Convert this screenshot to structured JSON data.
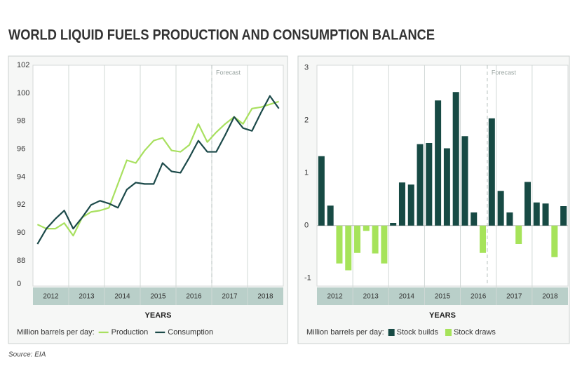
{
  "title": "WORLD LIQUID FUELS PRODUCTION AND CONSUMPTION BALANCE",
  "source": "Source: EIA",
  "chart_data": [
    {
      "type": "line",
      "categories": [
        "2012",
        "2013",
        "2014",
        "2015",
        "2016",
        "2017",
        "2018"
      ],
      "x": [
        2012.125,
        2012.375,
        2012.625,
        2012.875,
        2013.125,
        2013.375,
        2013.625,
        2013.875,
        2014.125,
        2014.375,
        2014.625,
        2014.875,
        2015.125,
        2015.375,
        2015.625,
        2015.875,
        2016.125,
        2016.375,
        2016.625,
        2016.875,
        2017.125,
        2017.375,
        2017.625,
        2017.875,
        2018.125,
        2018.375,
        2018.625,
        2018.875
      ],
      "xlim": [
        2012,
        2019
      ],
      "xgrid": [
        2013,
        2014,
        2015,
        2016,
        2017,
        2018
      ],
      "ylim": [
        0,
        102
      ],
      "y_break": [
        0,
        88
      ],
      "yticks": [
        0,
        88,
        90,
        92,
        94,
        96,
        98,
        100,
        102
      ],
      "forecast": {
        "label": "Forecast",
        "x": 2017
      },
      "xlabel": "YEARS",
      "legend_title": "Million barrels per day:",
      "series": [
        {
          "name": "Production",
          "color": "#a8e05f",
          "values": [
            90.6,
            90.3,
            90.3,
            90.7,
            89.8,
            91.1,
            91.5,
            91.6,
            91.8,
            93.5,
            95.2,
            95.0,
            95.9,
            96.6,
            96.8,
            95.9,
            95.8,
            96.3,
            97.8,
            96.5,
            97.2,
            97.8,
            98.3,
            97.8,
            98.9,
            99.0,
            99.2,
            99.4
          ]
        },
        {
          "name": "Consumption",
          "color": "#1c4a4a",
          "values": [
            89.2,
            90.3,
            91.0,
            91.6,
            90.3,
            91.1,
            92.0,
            92.3,
            92.1,
            91.8,
            93.1,
            93.6,
            93.5,
            93.5,
            95.0,
            94.4,
            94.3,
            95.4,
            96.6,
            95.8,
            95.8,
            97.0,
            98.3,
            97.5,
            97.3,
            98.6,
            99.8,
            98.9
          ]
        }
      ]
    },
    {
      "type": "bar",
      "categories": [
        "2012",
        "2013",
        "2014",
        "2015",
        "2016",
        "2017",
        "2018"
      ],
      "x": [
        2012.125,
        2012.375,
        2012.625,
        2012.875,
        2013.125,
        2013.375,
        2013.625,
        2013.875,
        2014.125,
        2014.375,
        2014.625,
        2014.875,
        2015.125,
        2015.375,
        2015.625,
        2015.875,
        2016.125,
        2016.375,
        2016.625,
        2016.875,
        2017.125,
        2017.375,
        2017.625,
        2017.875,
        2018.125,
        2018.375,
        2018.625,
        2018.875
      ],
      "xlim": [
        2012,
        2019
      ],
      "xgrid": [
        2013,
        2014,
        2015,
        2016,
        2017,
        2018
      ],
      "ylim": [
        -1.15,
        3.05
      ],
      "yticks": [
        -1,
        0,
        1,
        2,
        3
      ],
      "forecast": {
        "label": "Forecast",
        "x": 2016.75
      },
      "xlabel": "YEARS",
      "legend_title": "Million barrels per day:",
      "series": [
        {
          "name": "Stock builds",
          "color": "#174a44",
          "values": [
            1.32,
            0.38,
            null,
            null,
            null,
            null,
            null,
            null,
            0.05,
            0.82,
            0.78,
            1.55,
            1.57,
            2.38,
            1.47,
            2.54,
            1.7,
            0.25,
            null,
            2.04,
            0.66,
            0.25,
            null,
            0.83,
            0.44,
            0.42,
            null,
            0.37
          ]
        },
        {
          "name": "Stock draws",
          "color": "#a6e35a",
          "values": [
            null,
            null,
            -0.72,
            -0.85,
            -0.52,
            -0.1,
            -0.53,
            -0.72,
            null,
            null,
            null,
            null,
            null,
            null,
            null,
            null,
            null,
            null,
            -0.52,
            null,
            null,
            null,
            -0.35,
            null,
            null,
            null,
            -0.6,
            null
          ]
        }
      ]
    }
  ]
}
